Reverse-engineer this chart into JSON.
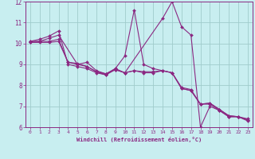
{
  "xlabel": "Windchill (Refroidissement éolien,°C)",
  "bg_color": "#c8eef0",
  "line_color": "#8b2882",
  "grid_color": "#a0cccc",
  "xlim": [
    -0.5,
    23.5
  ],
  "ylim": [
    6,
    12
  ],
  "xticks": [
    0,
    1,
    2,
    3,
    4,
    5,
    6,
    7,
    8,
    9,
    10,
    11,
    12,
    13,
    14,
    15,
    16,
    17,
    18,
    19,
    20,
    21,
    22,
    23
  ],
  "yticks": [
    6,
    7,
    8,
    9,
    10,
    11,
    12
  ],
  "lines": [
    {
      "x": [
        0,
        1,
        2,
        3,
        4,
        5,
        6,
        7,
        8,
        9,
        10,
        14,
        15,
        16,
        17,
        18,
        19,
        20,
        21,
        22,
        23
      ],
      "y": [
        10.1,
        10.2,
        10.35,
        10.6,
        9.0,
        8.9,
        8.8,
        8.6,
        8.5,
        8.8,
        8.6,
        11.2,
        12.0,
        10.8,
        10.4,
        6.0,
        7.0,
        6.8,
        6.5,
        6.5,
        6.3
      ]
    },
    {
      "x": [
        0,
        1,
        2,
        3,
        5,
        6,
        7,
        8,
        9,
        10,
        11,
        12,
        13,
        14,
        15,
        16,
        17,
        18,
        19,
        20,
        21,
        22,
        23
      ],
      "y": [
        10.1,
        10.1,
        10.25,
        10.4,
        9.0,
        9.1,
        8.7,
        8.55,
        8.8,
        9.4,
        11.6,
        9.0,
        8.8,
        8.7,
        8.6,
        7.9,
        7.8,
        7.1,
        7.1,
        6.8,
        6.5,
        6.5,
        6.4
      ]
    },
    {
      "x": [
        0,
        1,
        2,
        3,
        4,
        5,
        6,
        7,
        8,
        9,
        10,
        11,
        12,
        13,
        14,
        15,
        16,
        17,
        18,
        19,
        20,
        21,
        22,
        23
      ],
      "y": [
        10.05,
        10.1,
        10.1,
        10.2,
        9.1,
        9.05,
        8.9,
        8.65,
        8.5,
        8.75,
        8.6,
        8.7,
        8.65,
        8.65,
        8.7,
        8.6,
        7.85,
        7.75,
        7.1,
        7.15,
        6.85,
        6.55,
        6.5,
        6.35
      ]
    },
    {
      "x": [
        0,
        1,
        2,
        3,
        4,
        5,
        6,
        7,
        8,
        9,
        10,
        11,
        12,
        13,
        14,
        15,
        16,
        17,
        18,
        19,
        20,
        21,
        22,
        23
      ],
      "y": [
        10.05,
        10.05,
        10.05,
        10.1,
        9.1,
        9.0,
        8.9,
        8.65,
        8.55,
        8.75,
        8.6,
        8.7,
        8.6,
        8.6,
        8.7,
        8.6,
        7.85,
        7.75,
        7.1,
        7.15,
        6.85,
        6.55,
        6.5,
        6.35
      ]
    }
  ]
}
